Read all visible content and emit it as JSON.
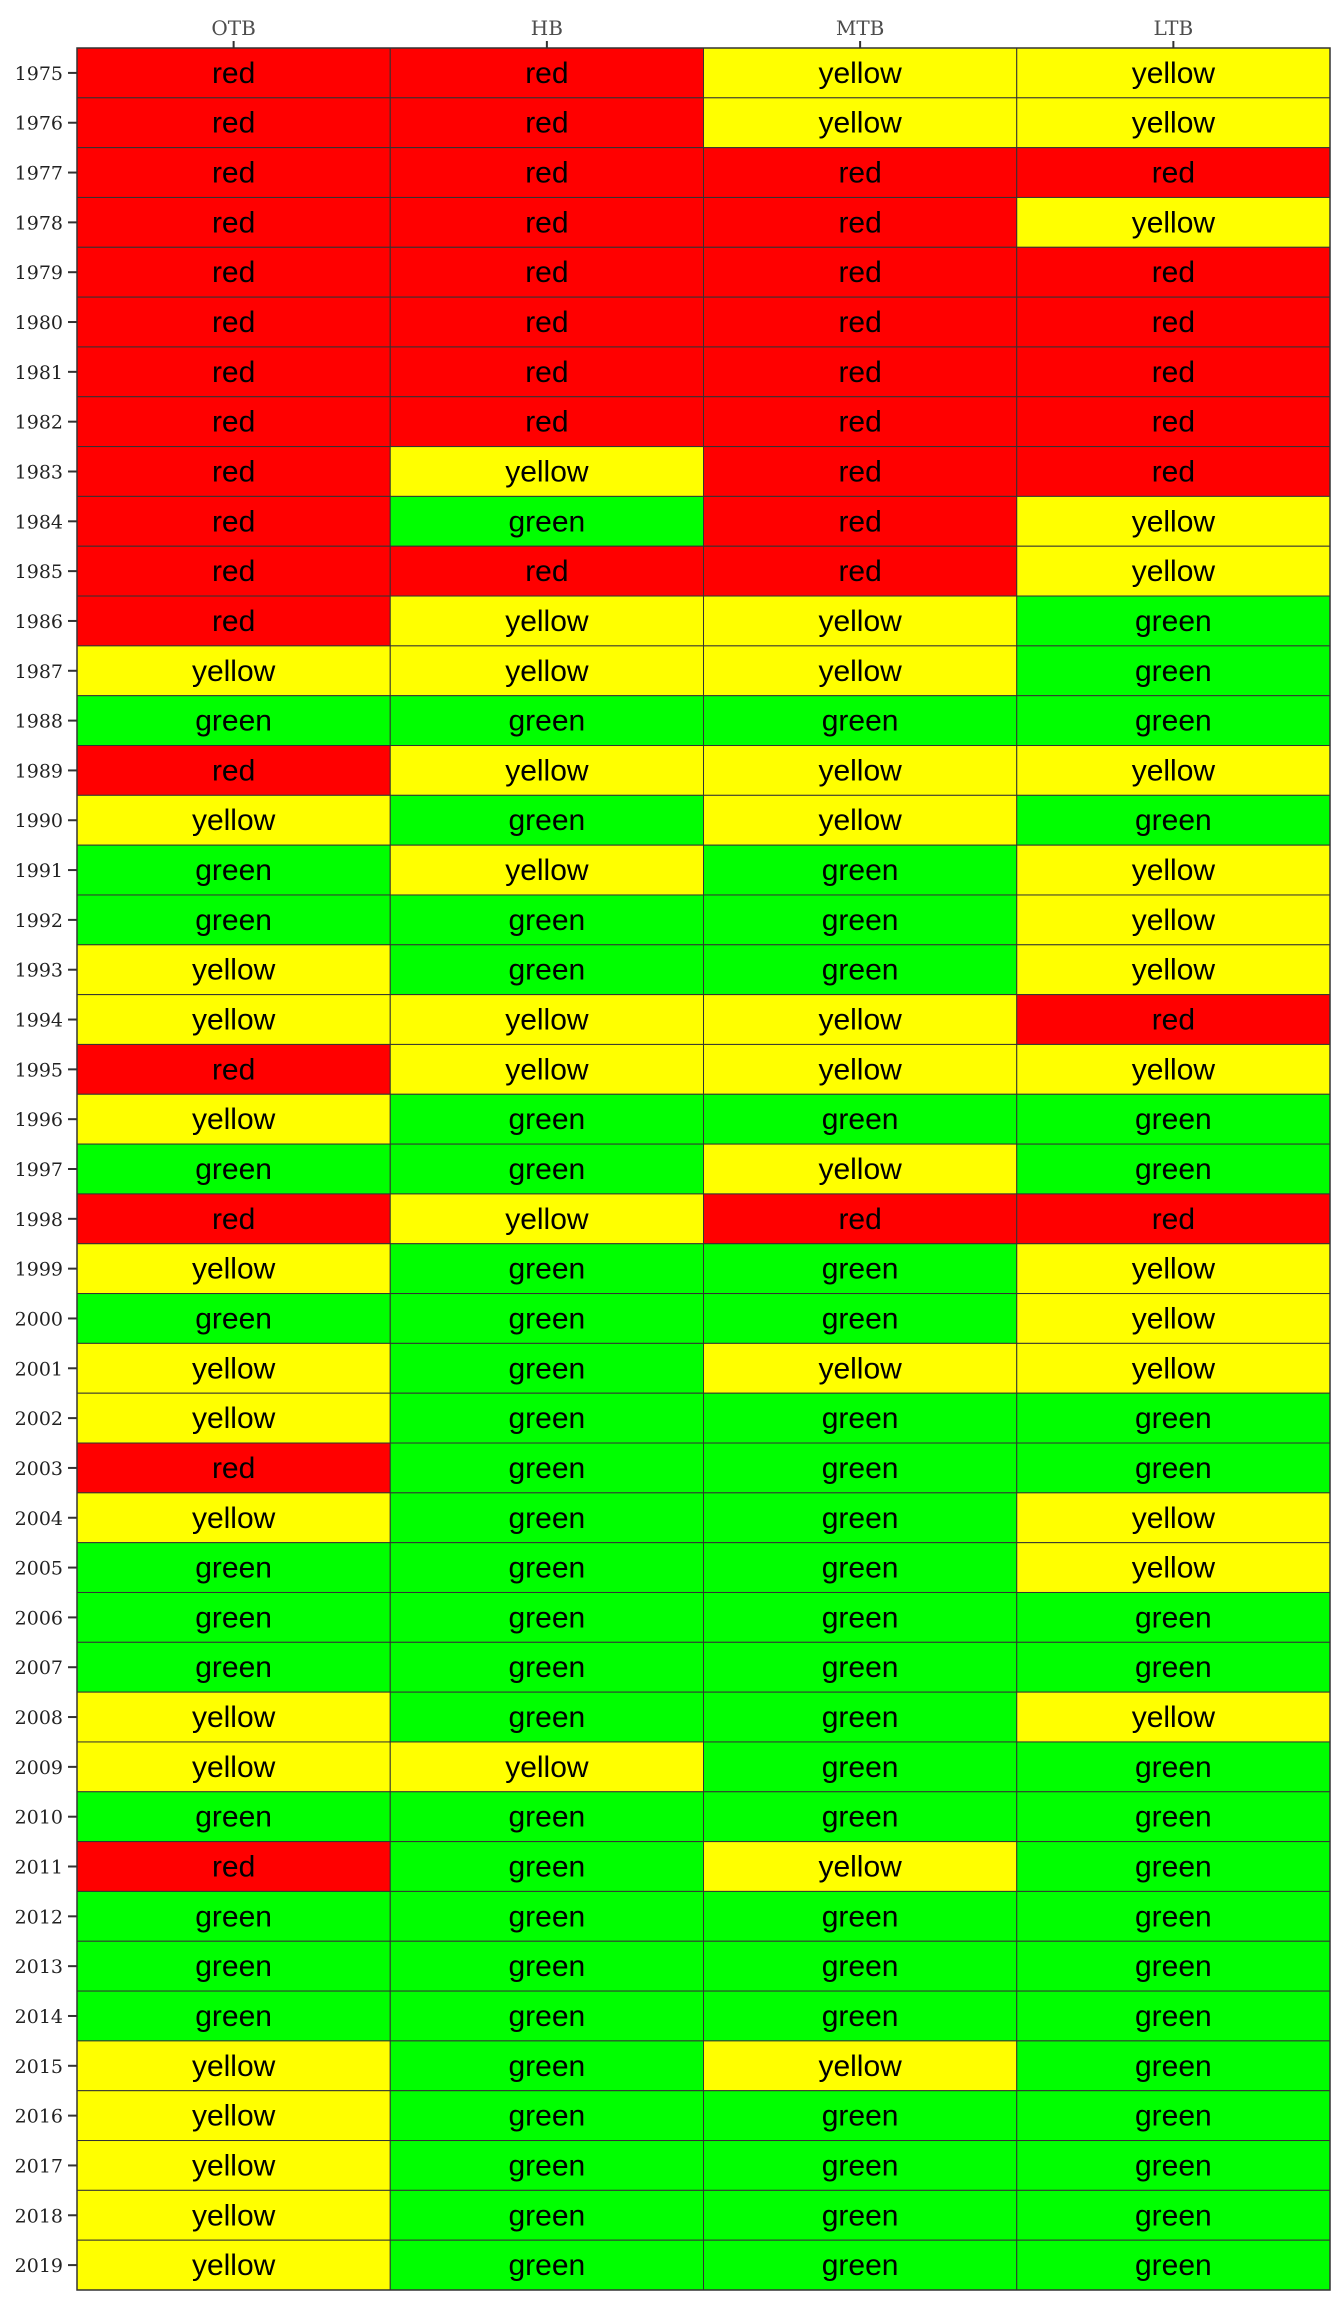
{
  "chart_data": {
    "type": "heatmap",
    "title": "",
    "xlabel": "",
    "ylabel": "",
    "columns": [
      "OTB",
      "HB",
      "MTB",
      "LTB"
    ],
    "rows": [
      "1975",
      "1976",
      "1977",
      "1978",
      "1979",
      "1980",
      "1981",
      "1982",
      "1983",
      "1984",
      "1985",
      "1986",
      "1987",
      "1988",
      "1989",
      "1990",
      "1991",
      "1992",
      "1993",
      "1994",
      "1995",
      "1996",
      "1997",
      "1998",
      "1999",
      "2000",
      "2001",
      "2002",
      "2003",
      "2004",
      "2005",
      "2006",
      "2007",
      "2008",
      "2009",
      "2010",
      "2011",
      "2012",
      "2013",
      "2014",
      "2015",
      "2016",
      "2017",
      "2018",
      "2019"
    ],
    "cells": [
      [
        "red",
        "red",
        "yellow",
        "yellow"
      ],
      [
        "red",
        "red",
        "yellow",
        "yellow"
      ],
      [
        "red",
        "red",
        "red",
        "red"
      ],
      [
        "red",
        "red",
        "red",
        "yellow"
      ],
      [
        "red",
        "red",
        "red",
        "red"
      ],
      [
        "red",
        "red",
        "red",
        "red"
      ],
      [
        "red",
        "red",
        "red",
        "red"
      ],
      [
        "red",
        "red",
        "red",
        "red"
      ],
      [
        "red",
        "yellow",
        "red",
        "red"
      ],
      [
        "red",
        "green",
        "red",
        "yellow"
      ],
      [
        "red",
        "red",
        "red",
        "yellow"
      ],
      [
        "red",
        "yellow",
        "yellow",
        "green"
      ],
      [
        "yellow",
        "yellow",
        "yellow",
        "green"
      ],
      [
        "green",
        "green",
        "green",
        "green"
      ],
      [
        "red",
        "yellow",
        "yellow",
        "yellow"
      ],
      [
        "yellow",
        "green",
        "yellow",
        "green"
      ],
      [
        "green",
        "yellow",
        "green",
        "yellow"
      ],
      [
        "green",
        "green",
        "green",
        "yellow"
      ],
      [
        "yellow",
        "green",
        "green",
        "yellow"
      ],
      [
        "yellow",
        "yellow",
        "yellow",
        "red"
      ],
      [
        "red",
        "yellow",
        "yellow",
        "yellow"
      ],
      [
        "yellow",
        "green",
        "green",
        "green"
      ],
      [
        "green",
        "green",
        "yellow",
        "green"
      ],
      [
        "red",
        "yellow",
        "red",
        "red"
      ],
      [
        "yellow",
        "green",
        "green",
        "yellow"
      ],
      [
        "green",
        "green",
        "green",
        "yellow"
      ],
      [
        "yellow",
        "green",
        "yellow",
        "yellow"
      ],
      [
        "yellow",
        "green",
        "green",
        "green"
      ],
      [
        "red",
        "green",
        "green",
        "green"
      ],
      [
        "yellow",
        "green",
        "green",
        "yellow"
      ],
      [
        "green",
        "green",
        "green",
        "yellow"
      ],
      [
        "green",
        "green",
        "green",
        "green"
      ],
      [
        "green",
        "green",
        "green",
        "green"
      ],
      [
        "yellow",
        "green",
        "green",
        "yellow"
      ],
      [
        "yellow",
        "yellow",
        "green",
        "green"
      ],
      [
        "green",
        "green",
        "green",
        "green"
      ],
      [
        "red",
        "green",
        "yellow",
        "green"
      ],
      [
        "green",
        "green",
        "green",
        "green"
      ],
      [
        "green",
        "green",
        "green",
        "green"
      ],
      [
        "green",
        "green",
        "green",
        "green"
      ],
      [
        "yellow",
        "green",
        "yellow",
        "green"
      ],
      [
        "yellow",
        "green",
        "green",
        "green"
      ],
      [
        "yellow",
        "green",
        "green",
        "green"
      ],
      [
        "yellow",
        "green",
        "green",
        "green"
      ],
      [
        "yellow",
        "green",
        "green",
        "green"
      ]
    ],
    "colors": {
      "red": "#ff0000",
      "yellow": "#ffff00",
      "green": "#00ff00"
    },
    "grid": true,
    "legend": "none"
  }
}
